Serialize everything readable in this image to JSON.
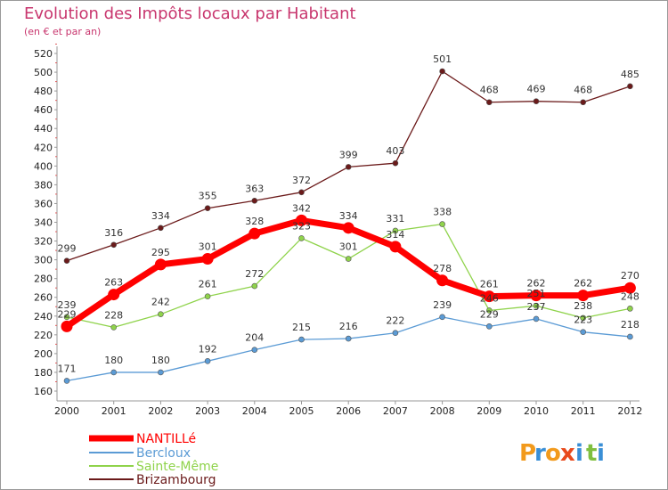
{
  "header": {
    "title": "Evolution des Impôts locaux par Habitant",
    "subtitle": "(en € et par an)"
  },
  "brand": {
    "letters": [
      "P",
      "r",
      "o",
      "x",
      "i",
      "t",
      "i"
    ],
    "colors": [
      "#f29a1c",
      "#3a8fd6",
      "#f29a1c",
      "#e84a1c",
      "#3a8fd6",
      "#7fbf3f",
      "#3a8fd6"
    ]
  },
  "chart_data": {
    "type": "line",
    "title": "Evolution des Impôts locaux par Habitant",
    "subtitle": "(en € et par an)",
    "xlabel": "",
    "ylabel": "",
    "ylim": [
      160,
      520
    ],
    "yticks": [
      160,
      180,
      200,
      220,
      240,
      260,
      280,
      300,
      320,
      340,
      360,
      380,
      400,
      420,
      440,
      460,
      480,
      500,
      520
    ],
    "grid": false,
    "legend_position": "bottom-left",
    "categories": [
      "2000",
      "2001",
      "2002",
      "2003",
      "2004",
      "2005",
      "2006",
      "2007",
      "2008",
      "2009",
      "2010",
      "2011",
      "2012"
    ],
    "series": [
      {
        "name": "NANTILLé",
        "color": "#ff0000",
        "values": [
          229,
          263,
          295,
          301,
          328,
          342,
          334,
          314,
          278,
          261,
          262,
          262,
          270
        ]
      },
      {
        "name": "Bercloux",
        "color": "#5b9bd5",
        "values": [
          171,
          180,
          180,
          192,
          204,
          215,
          216,
          222,
          239,
          229,
          237,
          223,
          218
        ]
      },
      {
        "name": "Sainte-Même",
        "color": "#8fd34b",
        "values": [
          239,
          228,
          242,
          261,
          272,
          323,
          301,
          331,
          338,
          246,
          251,
          238,
          248
        ]
      },
      {
        "name": "Brizambourg",
        "color": "#6b1a1a",
        "values": [
          299,
          316,
          334,
          355,
          363,
          372,
          399,
          403,
          501,
          468,
          469,
          468,
          485
        ]
      }
    ]
  }
}
